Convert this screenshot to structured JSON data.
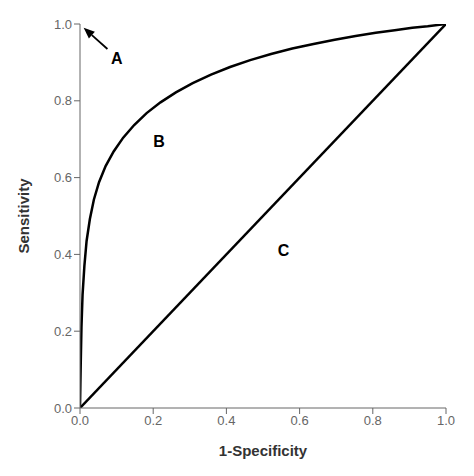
{
  "chart_data": {
    "type": "line",
    "xlabel": "1-Specificity",
    "ylabel": "Sensitivity",
    "xlim": [
      0.0,
      1.0
    ],
    "ylim": [
      0.0,
      1.0
    ],
    "xticks": [
      {
        "value": 0.0,
        "label": "0.0"
      },
      0.2,
      0.4,
      0.6,
      0.8,
      {
        "value": 1.0,
        "label": "1.0"
      }
    ],
    "yticks": [
      {
        "value": 0.0,
        "label": "0.0"
      },
      0.2,
      0.4,
      0.6,
      0.8,
      {
        "value": 1.0,
        "label": "1.0"
      }
    ],
    "series": [
      {
        "color": "#000000",
        "x": [
          0.0,
          1.0
        ],
        "values": [
          0.0,
          1.0
        ]
      },
      {
        "color": "#000000",
        "x": [
          0.0,
          0.001,
          0.002,
          0.004,
          0.007,
          0.012,
          0.018,
          0.027,
          0.038,
          0.052,
          0.07,
          0.092,
          0.118,
          0.148,
          0.182,
          0.22,
          0.262,
          0.308,
          0.358,
          0.41,
          0.465,
          0.522,
          0.58,
          0.638,
          0.696,
          0.753,
          0.808,
          0.86,
          0.908,
          0.95,
          0.982,
          1.0
        ],
        "values": [
          0.0,
          0.06,
          0.115,
          0.21,
          0.295,
          0.37,
          0.435,
          0.492,
          0.543,
          0.588,
          0.63,
          0.668,
          0.704,
          0.737,
          0.768,
          0.796,
          0.822,
          0.846,
          0.868,
          0.888,
          0.906,
          0.922,
          0.936,
          0.948,
          0.959,
          0.969,
          0.977,
          0.984,
          0.99,
          0.994,
          0.998,
          1.0
        ]
      }
    ],
    "annotations": [
      {
        "text": "A",
        "x": 0.085,
        "y": 0.925,
        "arrow_from": [
          0.075,
          0.935
        ],
        "arrow_to": [
          0.01,
          0.99
        ]
      },
      {
        "text": "B",
        "x": 0.2,
        "y": 0.695
      },
      {
        "text": "C",
        "x": 0.54,
        "y": 0.41
      }
    ]
  }
}
